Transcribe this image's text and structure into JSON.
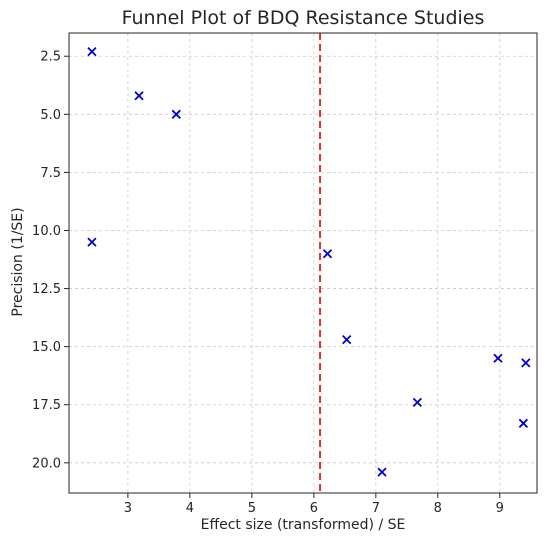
{
  "chart_data": {
    "type": "scatter",
    "title": "Funnel Plot of BDQ Resistance Studies",
    "xlabel": "Effect size (transformed) / SE",
    "ylabel": "Precision (1/SE)",
    "xlim": [
      2.05,
      9.6
    ],
    "ylim": [
      21.3,
      1.5
    ],
    "y_inverted": true,
    "grid": true,
    "x_ticks": [
      3,
      4,
      5,
      6,
      7,
      8,
      9
    ],
    "y_ticks": [
      2.5,
      5.0,
      7.5,
      10.0,
      12.5,
      15.0,
      17.5,
      20.0
    ],
    "marker": "x",
    "marker_color": "#0000cc",
    "reference_line": {
      "x": 6.1,
      "color": "#e03131",
      "style": "dashed"
    },
    "points": [
      {
        "x": 2.42,
        "y": 2.3
      },
      {
        "x": 3.18,
        "y": 4.2
      },
      {
        "x": 3.78,
        "y": 5.0
      },
      {
        "x": 2.42,
        "y": 10.5
      },
      {
        "x": 6.22,
        "y": 11.0
      },
      {
        "x": 6.53,
        "y": 14.7
      },
      {
        "x": 8.97,
        "y": 15.5
      },
      {
        "x": 9.42,
        "y": 15.7
      },
      {
        "x": 7.67,
        "y": 17.4
      },
      {
        "x": 9.38,
        "y": 18.3
      },
      {
        "x": 7.1,
        "y": 20.4
      }
    ]
  }
}
